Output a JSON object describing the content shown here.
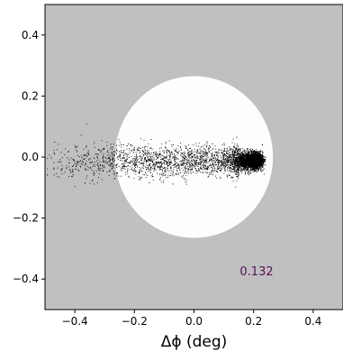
{
  "chart_data": {
    "type": "scatter",
    "title": "",
    "xlabel": "Δϕ (deg)",
    "ylabel": "",
    "xlim": [
      -0.5,
      0.5
    ],
    "ylim": [
      -0.5,
      0.5
    ],
    "x_ticks": [
      -0.4,
      -0.2,
      0.0,
      0.2,
      0.4
    ],
    "x_tick_labels": [
      "−0.4",
      "−0.2",
      "0.0",
      "0.2",
      "0.4"
    ],
    "y_ticks": [
      0.4,
      0.2,
      0.0,
      -0.2,
      -0.4
    ],
    "y_tick_labels": [
      "0.4",
      "0.2",
      "0.0",
      "−0.2",
      "−0.4"
    ],
    "grid": false,
    "annotation": {
      "text": "0.132",
      "x": 0.21,
      "y": -0.375,
      "color": "#5a0f5a"
    },
    "disk": {
      "center": [
        0.0,
        0.0
      ],
      "radius": 0.265,
      "color": "#fdfdfd"
    },
    "background_color": "#c0c0c0",
    "points_color": "#000000",
    "points_summary": "Dense horizontal band of small black points along y≈0, spanning x from about −0.5 to 0.23, densest near x≈0.21, y spread roughly ±0.03"
  }
}
